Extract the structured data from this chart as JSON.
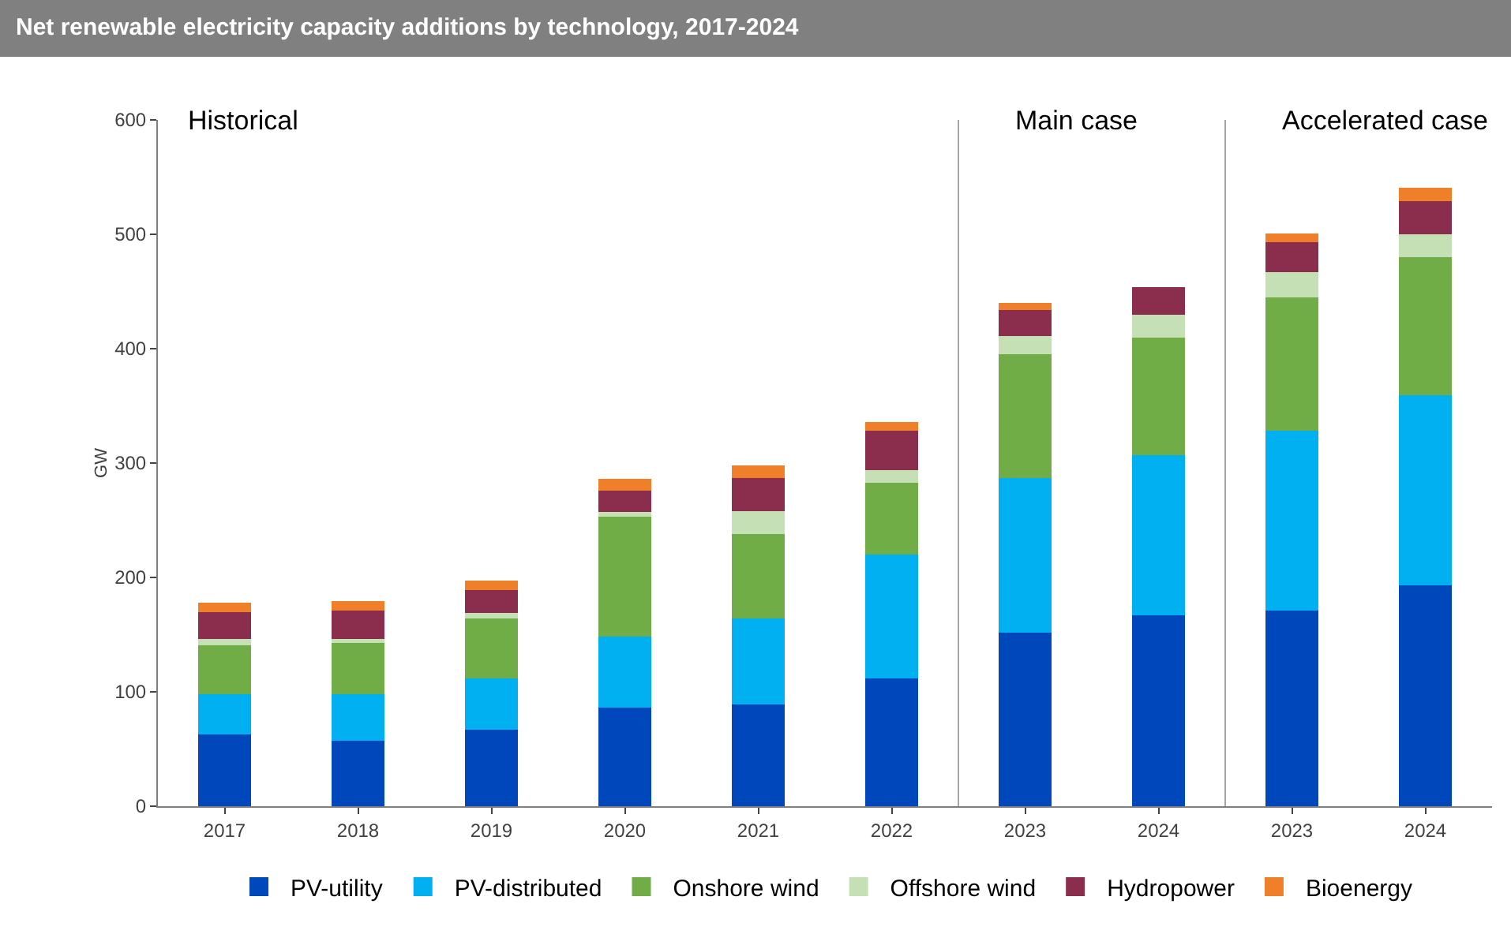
{
  "chart_data": {
    "type": "bar",
    "title": "Net renewable electricity capacity additions by technology, 2017-2024",
    "ylabel": "GW",
    "categories": [
      "2017",
      "2018",
      "2019",
      "2020",
      "2021",
      "2022",
      "2023",
      "2024",
      "2023",
      "2024"
    ],
    "stacked": true,
    "series": [
      {
        "name": "PV-utility",
        "color": "#0047bb",
        "values": [
          63,
          57,
          67,
          86,
          89,
          112,
          152,
          167,
          171,
          193
        ]
      },
      {
        "name": "PV-distributed",
        "color": "#00b0f0",
        "values": [
          35,
          41,
          45,
          62,
          75,
          108,
          135,
          140,
          157,
          166
        ]
      },
      {
        "name": "Onshore wind",
        "color": "#70ad47",
        "values": [
          43,
          45,
          52,
          105,
          74,
          63,
          108,
          103,
          117,
          121
        ]
      },
      {
        "name": "Offshore wind",
        "color": "#c5e0b4",
        "values": [
          5,
          3,
          5,
          4,
          20,
          11,
          16,
          20,
          22,
          20
        ]
      },
      {
        "name": "Hydropower",
        "color": "#8b2e4e",
        "values": [
          24,
          25,
          20,
          19,
          29,
          34,
          23,
          24,
          26,
          29
        ]
      },
      {
        "name": "Bioenergy",
        "color": "#f07f2a",
        "values": [
          8,
          8,
          8,
          10,
          11,
          8,
          6,
          null,
          8,
          12
        ]
      }
    ],
    "ylim": [
      0,
      600
    ],
    "yticks": [
      0,
      100,
      200,
      300,
      400,
      500,
      600
    ],
    "grid": false,
    "legend": "bottom",
    "annotations": [
      "Historical",
      "Main case",
      "Accelerated case"
    ]
  }
}
